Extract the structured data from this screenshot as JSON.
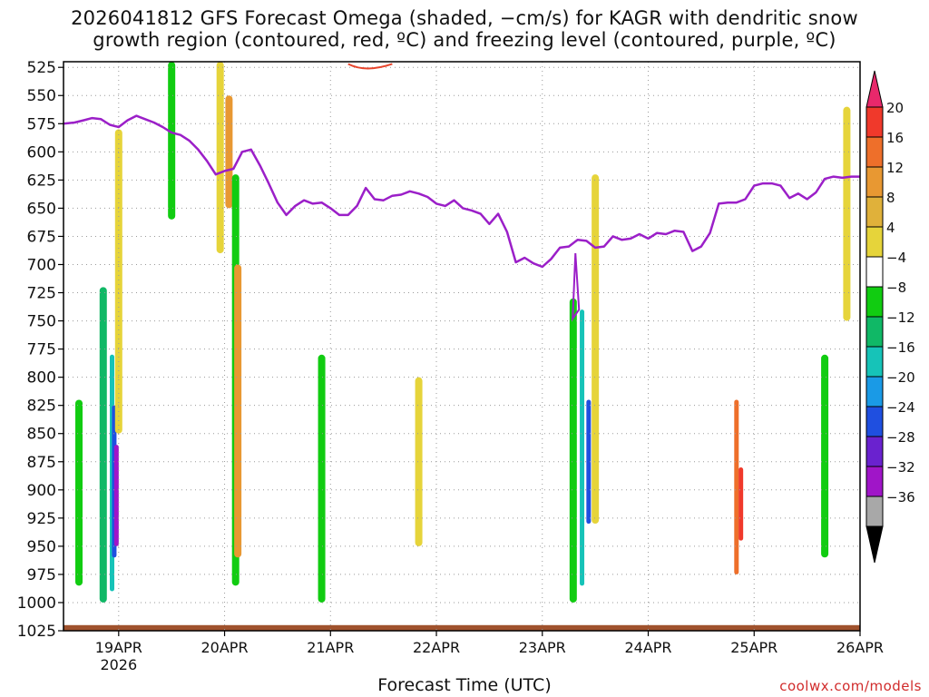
{
  "title_line1": "2026041812 GFS Forecast Omega (shaded, −cm/s) for KAGR with dendritic snow",
  "title_line2": "growth region (contoured, red, ºC) and freezing level (contoured, purple, ºC)",
  "xaxis_title": "Forecast Time (UTC)",
  "credit": "coolwx.com/models",
  "colors": {
    "freezing_level": "#9b1fc8",
    "dgz": "#e8452c",
    "ground": "#a0522d",
    "grid": "#9a9a9a"
  },
  "chart_data": {
    "type": "heatmap",
    "title": "2026041812 GFS Forecast Omega (shaded, −cm/s) for KAGR with dendritic snow growth region (contoured, red, ºC) and freezing level (contoured, purple, ºC)",
    "xlabel": "Forecast Time (UTC)",
    "ylabel": "",
    "x_ticks": [
      "19APR",
      "20APR",
      "21APR",
      "22APR",
      "23APR",
      "24APR",
      "25APR",
      "26APR"
    ],
    "x_tick_year": "2026",
    "xlim_hours": [
      -12.5,
      168
    ],
    "y_ticks": [
      525,
      550,
      575,
      600,
      625,
      650,
      675,
      700,
      725,
      750,
      775,
      800,
      825,
      850,
      875,
      900,
      925,
      950,
      975,
      1000,
      1025
    ],
    "ylim_hpa": [
      1025,
      520
    ],
    "grid": true,
    "colorbar": {
      "labels": [
        "20",
        "16",
        "12",
        "8",
        "4",
        "−4",
        "−8",
        "−12",
        "−16",
        "−20",
        "−24",
        "−28",
        "−32",
        "−36"
      ],
      "colors": [
        "#e8286b",
        "#f0392b",
        "#ee6f2a",
        "#e89832",
        "#e0b13a",
        "#e6d43a",
        "#ffffff",
        "#11cc11",
        "#10b866",
        "#16c3b8",
        "#1a9ae6",
        "#1f4fe0",
        "#6a22cf",
        "#a015c8",
        "#a8a8a8",
        "#000000"
      ]
    },
    "freezing_level": {
      "x_hours": [
        -12.5,
        -10,
        -8,
        -6,
        -4,
        -2,
        0,
        2,
        4,
        6,
        8,
        10,
        12,
        14,
        16,
        18,
        20,
        22,
        24,
        26,
        28,
        30,
        32,
        34,
        36,
        38,
        40,
        42,
        44,
        46,
        48,
        50,
        52,
        54,
        56,
        58,
        60,
        62,
        64,
        66,
        68,
        70,
        72,
        74,
        76,
        78,
        80,
        82,
        84,
        86,
        88,
        90,
        92,
        94,
        96,
        98,
        100,
        102,
        104,
        106,
        108,
        110,
        112,
        114,
        116,
        118,
        120,
        122,
        124,
        126,
        128,
        130,
        132,
        134,
        136,
        138,
        140,
        142,
        144,
        146,
        148,
        150,
        152,
        154,
        156,
        158,
        160,
        162,
        164,
        166,
        168
      ],
      "p_hpa": [
        575,
        574,
        572,
        570,
        571,
        576,
        578,
        572,
        568,
        571,
        574,
        578,
        583,
        585,
        590,
        598,
        608,
        620,
        617,
        615,
        600,
        598,
        612,
        628,
        645,
        656,
        648,
        643,
        646,
        645,
        650,
        656,
        656,
        648,
        632,
        642,
        643,
        639,
        638,
        635,
        637,
        640,
        646,
        648,
        643,
        650,
        652,
        655,
        664,
        655,
        671,
        698,
        694,
        699,
        702,
        695,
        685,
        684,
        678,
        679,
        685,
        684,
        675,
        678,
        677,
        673,
        677,
        672,
        673,
        670,
        671,
        688,
        684,
        672,
        646,
        645,
        645,
        642,
        630,
        628,
        628,
        630,
        641,
        637,
        642,
        636,
        624,
        622,
        623,
        622,
        622
      ]
    },
    "fields": [
      {
        "x_hours": -9,
        "p_hpa": [
          820,
          985
        ],
        "value": -6
      },
      {
        "x_hours": -3.5,
        "p_hpa": [
          720,
          1000
        ],
        "value": -8
      },
      {
        "x_hours": -1.5,
        "p_hpa": [
          780,
          990
        ],
        "value": -14
      },
      {
        "x_hours": -1,
        "p_hpa": [
          825,
          960
        ],
        "value": -20
      },
      {
        "x_hours": -0.5,
        "p_hpa": [
          860,
          950
        ],
        "value": -28
      },
      {
        "x_hours": 0,
        "p_hpa": [
          580,
          850
        ],
        "value": 6
      },
      {
        "x_hours": 12,
        "p_hpa": [
          520,
          660
        ],
        "value": -6
      },
      {
        "x_hours": 23,
        "p_hpa": [
          520,
          690
        ],
        "value": 6
      },
      {
        "x_hours": 25,
        "p_hpa": [
          550,
          650
        ],
        "value": 10
      },
      {
        "x_hours": 26.5,
        "p_hpa": [
          620,
          985
        ],
        "value": -6
      },
      {
        "x_hours": 27,
        "p_hpa": [
          700,
          960
        ],
        "value": 8
      },
      {
        "x_hours": 46,
        "p_hpa": [
          780,
          1000
        ],
        "value": -6
      },
      {
        "x_hours": 68,
        "p_hpa": [
          800,
          950
        ],
        "value": 5
      },
      {
        "x_hours": 103,
        "p_hpa": [
          730,
          1000
        ],
        "value": -6
      },
      {
        "x_hours": 105,
        "p_hpa": [
          740,
          985
        ],
        "value": -14
      },
      {
        "x_hours": 106.5,
        "p_hpa": [
          820,
          930
        ],
        "value": -22
      },
      {
        "x_hours": 108,
        "p_hpa": [
          620,
          930
        ],
        "value": 6
      },
      {
        "x_hours": 140,
        "p_hpa": [
          820,
          975
        ],
        "value": 12
      },
      {
        "x_hours": 141,
        "p_hpa": [
          880,
          945
        ],
        "value": 17
      },
      {
        "x_hours": 160,
        "p_hpa": [
          780,
          960
        ],
        "value": -6
      },
      {
        "x_hours": 165,
        "p_hpa": [
          560,
          750
        ],
        "value": 5
      }
    ]
  }
}
